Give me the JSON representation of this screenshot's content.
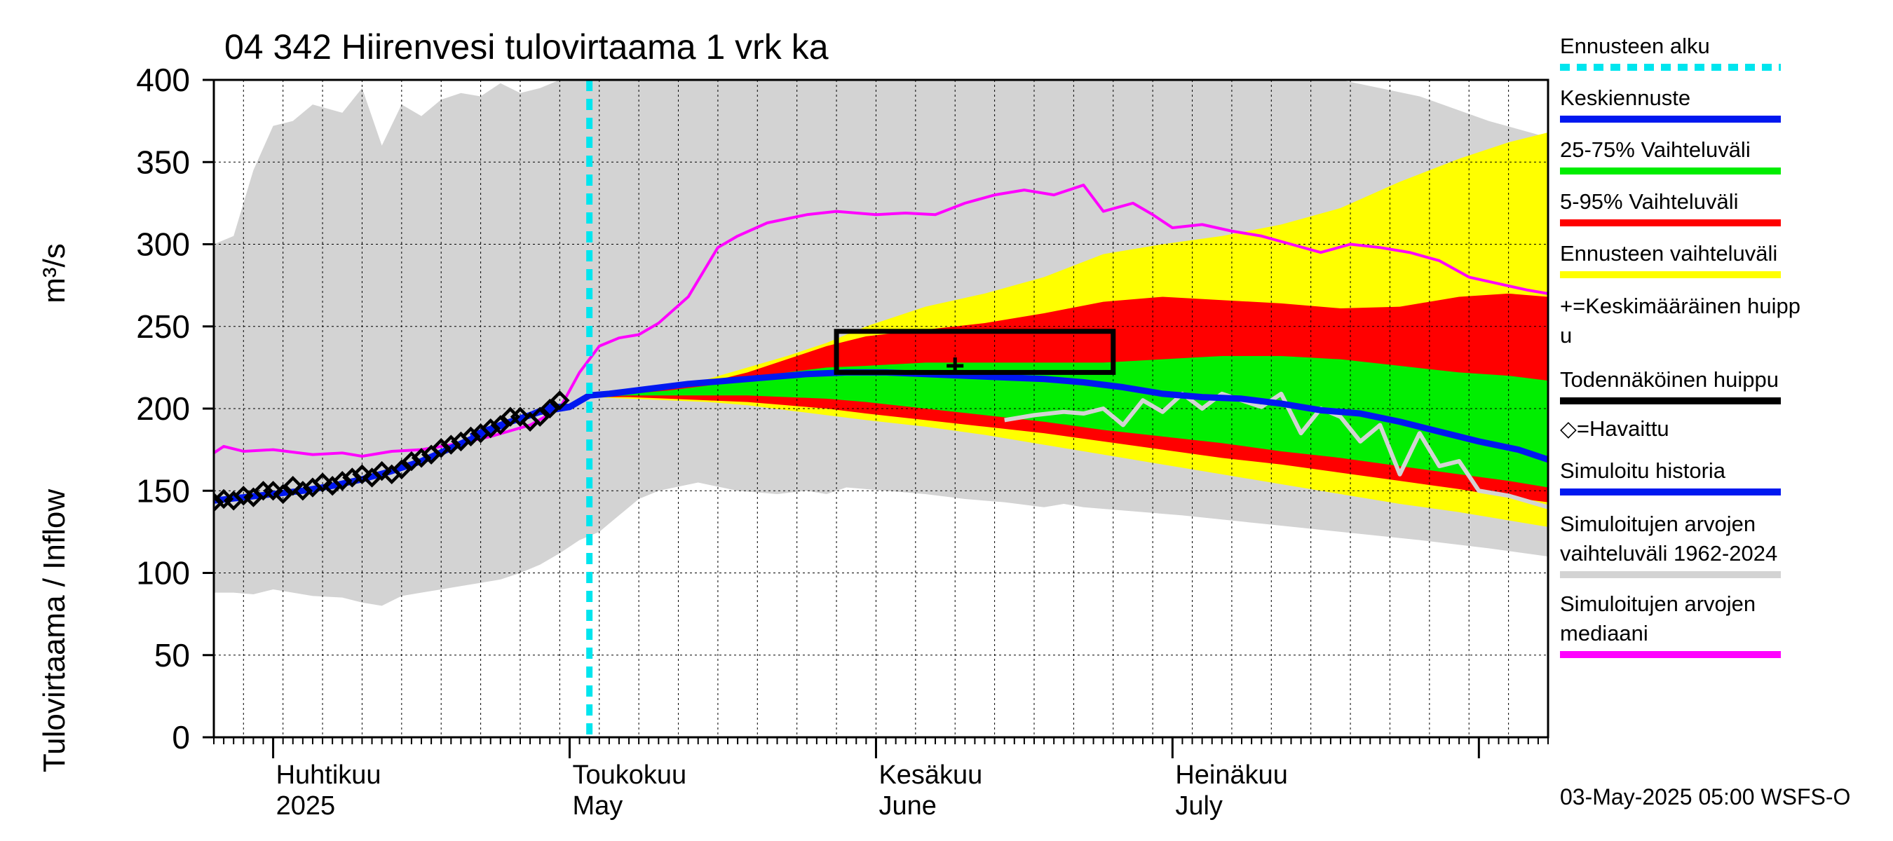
{
  "chart_data": {
    "type": "area",
    "title": "04 342 Hiirenvesi tulovirtaama 1 vrk ka",
    "ylabel": "Tulovirtaama / Inflow",
    "yunit": "m³/s",
    "ylim": [
      0,
      400
    ],
    "yticks": [
      0,
      50,
      100,
      150,
      200,
      250,
      300,
      350,
      400
    ],
    "xlim": [
      "2025-03-26",
      "2025-08-08"
    ],
    "grid": true,
    "months": [
      {
        "label1": "Huhtikuu",
        "label2": "2025",
        "date": "2025-04-01"
      },
      {
        "label1": "Toukokuu",
        "label2": "May",
        "date": "2025-05-01"
      },
      {
        "label1": "Kesäkuu",
        "label2": "June",
        "date": "2025-06-01"
      },
      {
        "label1": "Heinäkuu",
        "label2": "July",
        "date": "2025-07-01"
      }
    ],
    "forecast_start": "2025-05-03",
    "legend_position": "right",
    "legend": [
      {
        "key": "forecast_start",
        "label": "Ennusteen alku",
        "color": "#00e5ee",
        "style": "dashed"
      },
      {
        "key": "mean",
        "label": "Keskiennuste",
        "color": "#0018f0",
        "style": "line"
      },
      {
        "key": "p25_75",
        "label": "25-75% Vaihteluväli",
        "color": "#00ee00",
        "style": "line"
      },
      {
        "key": "p5_95",
        "label": "5-95% Vaihteluväli",
        "color": "#ff0000",
        "style": "line"
      },
      {
        "key": "range",
        "label": "Ennusteen vaihteluväli",
        "color": "#ffff00",
        "style": "line"
      },
      {
        "key": "mean_peak",
        "label": "+=Keskimääräinen huippu",
        "color": "#000000",
        "style": "text"
      },
      {
        "key": "likely_peak",
        "label": "Todennäköinen huippu",
        "color": "#000000",
        "style": "line"
      },
      {
        "key": "observed",
        "label": "◇=Havaittu",
        "color": "#000000",
        "style": "text"
      },
      {
        "key": "sim_history",
        "label": "Simuloitu historia",
        "color": "#0018f0",
        "style": "line"
      },
      {
        "key": "hist_range",
        "label": "Simuloitujen arvojen vaihteluväli 1962-2024",
        "color": "#d3d3d3",
        "style": "line"
      },
      {
        "key": "hist_median",
        "label": "Simuloitujen arvojen mediaani",
        "color": "#ff00ff",
        "style": "line"
      }
    ],
    "series": {
      "hist_range": {
        "dates": [
          "2025-03-26",
          "2025-03-28",
          "2025-03-30",
          "2025-04-01",
          "2025-04-03",
          "2025-04-05",
          "2025-04-08",
          "2025-04-10",
          "2025-04-12",
          "2025-04-14",
          "2025-04-16",
          "2025-04-18",
          "2025-04-20",
          "2025-04-22",
          "2025-04-24",
          "2025-04-26",
          "2025-04-28",
          "2025-04-30",
          "2025-05-02",
          "2025-05-04",
          "2025-05-06",
          "2025-05-08",
          "2025-05-10",
          "2025-05-14",
          "2025-05-18",
          "2025-05-22",
          "2025-05-25",
          "2025-05-27",
          "2025-05-29",
          "2025-06-02",
          "2025-06-06",
          "2025-06-10",
          "2025-06-14",
          "2025-06-18",
          "2025-06-20",
          "2025-06-22",
          "2025-06-26",
          "2025-07-02",
          "2025-07-10",
          "2025-07-18",
          "2025-07-26",
          "2025-08-02",
          "2025-08-08"
        ],
        "upper": [
          300,
          305,
          345,
          372,
          375,
          385,
          380,
          395,
          360,
          385,
          378,
          388,
          392,
          390,
          398,
          392,
          395,
          400,
          400,
          400,
          400,
          400,
          400,
          400,
          400,
          400,
          400,
          400,
          400,
          400,
          400,
          400,
          400,
          400,
          400,
          400,
          400,
          400,
          400,
          400,
          390,
          375,
          365
        ],
        "lower": [
          88,
          88,
          87,
          90,
          88,
          86,
          85,
          82,
          80,
          86,
          88,
          90,
          92,
          94,
          96,
          100,
          105,
          112,
          120,
          125,
          135,
          145,
          150,
          155,
          150,
          148,
          150,
          148,
          152,
          150,
          148,
          145,
          143,
          140,
          142,
          140,
          138,
          135,
          130,
          125,
          120,
          115,
          110
        ]
      },
      "range": {
        "dates": [
          "2025-05-03",
          "2025-05-07",
          "2025-05-11",
          "2025-05-15",
          "2025-05-19",
          "2025-05-23",
          "2025-05-27",
          "2025-05-31",
          "2025-06-06",
          "2025-06-12",
          "2025-06-18",
          "2025-06-24",
          "2025-06-30",
          "2025-07-06",
          "2025-07-12",
          "2025-07-18",
          "2025-07-24",
          "2025-07-30",
          "2025-08-04",
          "2025-08-08"
        ],
        "upper": [
          208,
          210,
          213,
          218,
          225,
          232,
          240,
          250,
          262,
          270,
          280,
          294,
          300,
          305,
          312,
          322,
          338,
          352,
          362,
          368
        ],
        "lower": [
          207,
          206,
          205,
          204,
          202,
          199,
          196,
          193,
          189,
          184,
          178,
          172,
          166,
          160,
          154,
          148,
          142,
          137,
          132,
          128
        ]
      },
      "p5_95": {
        "dates": [
          "2025-05-03",
          "2025-05-07",
          "2025-05-11",
          "2025-05-15",
          "2025-05-19",
          "2025-05-23",
          "2025-05-27",
          "2025-05-31",
          "2025-06-06",
          "2025-06-12",
          "2025-06-18",
          "2025-06-24",
          "2025-06-30",
          "2025-07-06",
          "2025-07-12",
          "2025-07-18",
          "2025-07-24",
          "2025-07-30",
          "2025-08-04",
          "2025-08-08"
        ],
        "upper": [
          208,
          209,
          212,
          216,
          222,
          230,
          238,
          244,
          248,
          252,
          258,
          265,
          268,
          266,
          264,
          261,
          262,
          268,
          270,
          268
        ],
        "lower": [
          207,
          207,
          206,
          205,
          204,
          202,
          200,
          197,
          193,
          189,
          185,
          180,
          175,
          170,
          166,
          161,
          156,
          151,
          146,
          143
        ]
      },
      "p25_75": {
        "dates": [
          "2025-05-03",
          "2025-05-07",
          "2025-05-11",
          "2025-05-15",
          "2025-05-19",
          "2025-05-23",
          "2025-05-27",
          "2025-05-31",
          "2025-06-06",
          "2025-06-12",
          "2025-06-18",
          "2025-06-24",
          "2025-06-30",
          "2025-07-06",
          "2025-07-12",
          "2025-07-18",
          "2025-07-24",
          "2025-07-30",
          "2025-08-04",
          "2025-08-08"
        ],
        "upper": [
          208,
          209,
          211,
          214,
          218,
          222,
          225,
          226,
          228,
          228,
          228,
          228,
          230,
          232,
          232,
          230,
          226,
          222,
          220,
          217
        ],
        "lower": [
          207,
          208,
          208,
          208,
          208,
          207,
          206,
          204,
          200,
          196,
          192,
          187,
          183,
          179,
          174,
          170,
          165,
          160,
          156,
          152
        ]
      },
      "mean": {
        "dates": [
          "2025-04-21",
          "2025-04-24",
          "2025-04-27",
          "2025-04-29",
          "2025-05-01",
          "2025-05-03",
          "2025-05-05",
          "2025-05-09",
          "2025-05-13",
          "2025-05-17",
          "2025-05-21",
          "2025-05-25",
          "2025-05-29",
          "2025-06-02",
          "2025-06-06",
          "2025-06-10",
          "2025-06-14",
          "2025-06-18",
          "2025-06-22",
          "2025-06-26",
          "2025-06-30",
          "2025-07-04",
          "2025-07-08",
          "2025-07-12",
          "2025-07-16",
          "2025-07-20",
          "2025-07-24",
          "2025-07-28",
          "2025-08-01",
          "2025-08-05",
          "2025-08-08"
        ],
        "values": [
          183,
          190,
          196,
          201,
          201,
          208,
          209,
          212,
          215,
          217,
          219,
          221,
          222,
          222,
          221,
          220,
          219,
          218,
          216,
          213,
          209,
          207,
          206,
          203,
          199,
          197,
          192,
          186,
          180,
          175,
          169
        ]
      },
      "sim_history": {
        "dates": [
          "2025-03-26",
          "2025-03-29",
          "2025-04-01",
          "2025-04-04",
          "2025-04-07",
          "2025-04-10",
          "2025-04-13",
          "2025-04-16",
          "2025-04-19",
          "2025-04-22",
          "2025-04-25",
          "2025-04-28",
          "2025-05-01",
          "2025-05-03"
        ],
        "values": [
          144,
          146,
          148,
          150,
          153,
          157,
          162,
          168,
          176,
          184,
          192,
          198,
          201,
          208
        ]
      },
      "hist_median": {
        "dates": [
          "2025-03-26",
          "2025-03-27",
          "2025-03-29",
          "2025-04-01",
          "2025-04-05",
          "2025-04-08",
          "2025-04-10",
          "2025-04-13",
          "2025-04-16",
          "2025-04-19",
          "2025-04-23",
          "2025-04-27",
          "2025-04-30",
          "2025-05-02",
          "2025-05-04",
          "2025-05-06",
          "2025-05-08",
          "2025-05-10",
          "2025-05-13",
          "2025-05-16",
          "2025-05-18",
          "2025-05-21",
          "2025-05-25",
          "2025-05-28",
          "2025-06-01",
          "2025-06-04",
          "2025-06-07",
          "2025-06-10",
          "2025-06-13",
          "2025-06-16",
          "2025-06-19",
          "2025-06-22",
          "2025-06-24",
          "2025-06-27",
          "2025-06-29",
          "2025-07-01",
          "2025-07-04",
          "2025-07-07",
          "2025-07-10",
          "2025-07-13",
          "2025-07-16",
          "2025-07-19",
          "2025-07-22",
          "2025-07-25",
          "2025-07-28",
          "2025-07-31",
          "2025-08-03",
          "2025-08-06",
          "2025-08-08"
        ],
        "values": [
          173,
          177,
          174,
          175,
          172,
          173,
          171,
          174,
          175,
          178,
          183,
          190,
          200,
          222,
          238,
          243,
          245,
          252,
          268,
          298,
          305,
          313,
          318,
          320,
          318,
          319,
          318,
          325,
          330,
          333,
          330,
          336,
          320,
          325,
          318,
          310,
          312,
          308,
          305,
          300,
          295,
          300,
          298,
          295,
          290,
          280,
          276,
          272,
          270
        ]
      },
      "hist_sim_grey": {
        "dates": [
          "2025-06-14",
          "2025-06-17",
          "2025-06-20",
          "2025-06-22",
          "2025-06-24",
          "2025-06-26",
          "2025-06-28",
          "2025-06-30",
          "2025-07-02",
          "2025-07-04",
          "2025-07-06",
          "2025-07-08",
          "2025-07-10",
          "2025-07-12",
          "2025-07-14",
          "2025-07-16",
          "2025-07-18",
          "2025-07-20",
          "2025-07-22",
          "2025-07-24",
          "2025-07-26",
          "2025-07-28",
          "2025-07-30",
          "2025-08-01",
          "2025-08-04",
          "2025-08-08"
        ],
        "values": [
          193,
          196,
          198,
          197,
          200,
          190,
          205,
          198,
          209,
          200,
          209,
          205,
          201,
          209,
          185,
          200,
          195,
          180,
          190,
          160,
          185,
          165,
          168,
          150,
          147,
          140
        ]
      },
      "observed": {
        "dates": [
          "2025-03-26",
          "2025-03-27",
          "2025-03-28",
          "2025-03-29",
          "2025-03-30",
          "2025-03-31",
          "2025-04-01",
          "2025-04-02",
          "2025-04-03",
          "2025-04-04",
          "2025-04-05",
          "2025-04-06",
          "2025-04-07",
          "2025-04-08",
          "2025-04-09",
          "2025-04-10",
          "2025-04-11",
          "2025-04-12",
          "2025-04-13",
          "2025-04-14",
          "2025-04-15",
          "2025-04-16",
          "2025-04-17",
          "2025-04-18",
          "2025-04-19",
          "2025-04-20",
          "2025-04-21",
          "2025-04-22",
          "2025-04-23",
          "2025-04-24",
          "2025-04-25",
          "2025-04-26",
          "2025-04-27",
          "2025-04-28",
          "2025-04-29",
          "2025-04-30"
        ],
        "values": [
          143,
          145,
          144,
          147,
          146,
          150,
          150,
          148,
          153,
          150,
          152,
          155,
          153,
          156,
          158,
          160,
          158,
          162,
          160,
          163,
          168,
          170,
          172,
          176,
          178,
          180,
          183,
          185,
          188,
          190,
          195,
          195,
          192,
          195,
          200,
          205
        ]
      }
    },
    "likely_peak_box": {
      "x0": "2025-05-28",
      "x1": "2025-06-25",
      "y0": 222,
      "y1": 247
    },
    "mean_peak": {
      "date": "2025-06-09",
      "value": 226
    }
  },
  "footer": "03-May-2025 05:00 WSFS-O"
}
